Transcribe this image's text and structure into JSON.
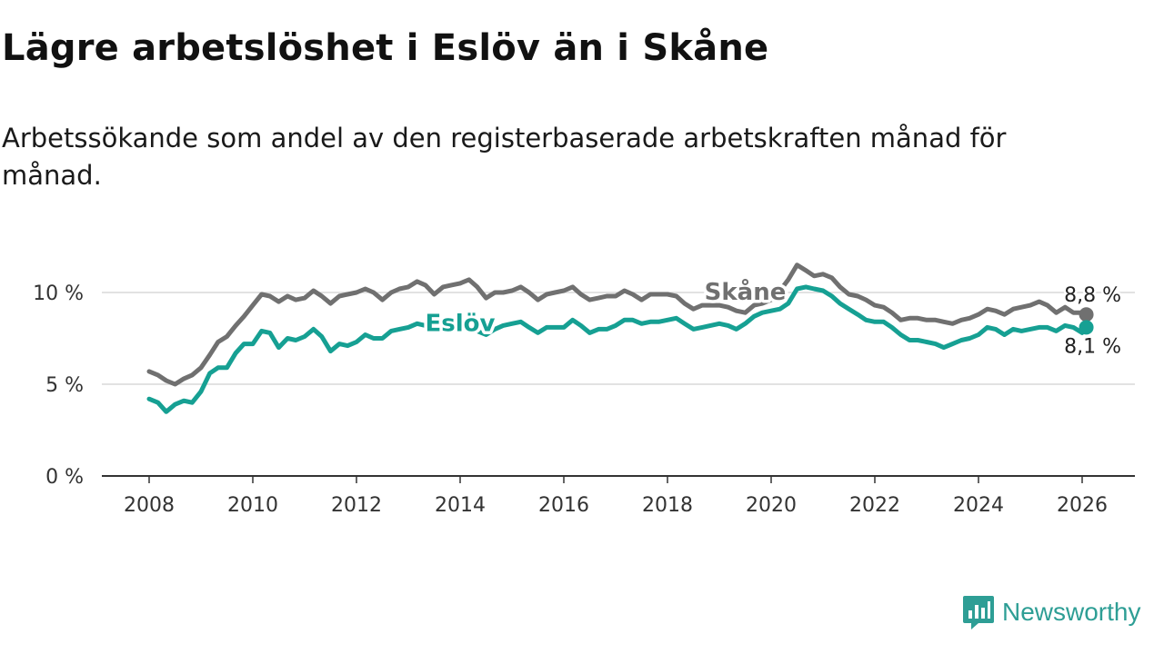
{
  "title": "Lägre arbetslöshet i Eslöv än i Skåne",
  "subtitle": "Arbetssökande som andel av den registerbaserade arbetskraften månad för månad.",
  "brand": {
    "name": "Newsworthy",
    "color": "#2e9e95",
    "icon": "newsworthy-logo-icon"
  },
  "chart_data": {
    "type": "line",
    "title": "Lägre arbetslöshet i Eslöv än i Skåne",
    "xlabel": "",
    "ylabel": "",
    "xlim": [
      2007.5,
      2027.0
    ],
    "ylim": [
      0,
      10
    ],
    "x_ticks": [
      2008,
      2010,
      2012,
      2014,
      2016,
      2018,
      2020,
      2022,
      2024,
      2026
    ],
    "y_ticks": [
      0,
      5,
      10
    ],
    "y_tick_labels": [
      "0 %",
      "5 %",
      "10 %"
    ],
    "grid": "horizontal",
    "series": [
      {
        "name": "Skåne",
        "color": "#707070",
        "end_label": "8,8 %",
        "points": [
          [
            2008.0,
            5.7
          ],
          [
            2008.17,
            5.5
          ],
          [
            2008.33,
            5.2
          ],
          [
            2008.5,
            5.0
          ],
          [
            2008.67,
            5.3
          ],
          [
            2008.83,
            5.5
          ],
          [
            2009.0,
            5.9
          ],
          [
            2009.17,
            6.6
          ],
          [
            2009.33,
            7.3
          ],
          [
            2009.5,
            7.6
          ],
          [
            2009.67,
            8.2
          ],
          [
            2009.83,
            8.7
          ],
          [
            2010.0,
            9.3
          ],
          [
            2010.17,
            9.9
          ],
          [
            2010.33,
            9.8
          ],
          [
            2010.5,
            9.5
          ],
          [
            2010.67,
            9.8
          ],
          [
            2010.83,
            9.6
          ],
          [
            2011.0,
            9.7
          ],
          [
            2011.17,
            10.1
          ],
          [
            2011.33,
            9.8
          ],
          [
            2011.5,
            9.4
          ],
          [
            2011.67,
            9.8
          ],
          [
            2011.83,
            9.9
          ],
          [
            2012.0,
            10.0
          ],
          [
            2012.17,
            10.2
          ],
          [
            2012.33,
            10.0
          ],
          [
            2012.5,
            9.6
          ],
          [
            2012.67,
            10.0
          ],
          [
            2012.83,
            10.2
          ],
          [
            2013.0,
            10.3
          ],
          [
            2013.17,
            10.6
          ],
          [
            2013.33,
            10.4
          ],
          [
            2013.5,
            9.9
          ],
          [
            2013.67,
            10.3
          ],
          [
            2013.83,
            10.4
          ],
          [
            2014.0,
            10.5
          ],
          [
            2014.17,
            10.7
          ],
          [
            2014.33,
            10.3
          ],
          [
            2014.5,
            9.7
          ],
          [
            2014.67,
            10.0
          ],
          [
            2014.83,
            10.0
          ],
          [
            2015.0,
            10.1
          ],
          [
            2015.17,
            10.3
          ],
          [
            2015.33,
            10.0
          ],
          [
            2015.5,
            9.6
          ],
          [
            2015.67,
            9.9
          ],
          [
            2015.83,
            10.0
          ],
          [
            2016.0,
            10.1
          ],
          [
            2016.17,
            10.3
          ],
          [
            2016.33,
            9.9
          ],
          [
            2016.5,
            9.6
          ],
          [
            2016.67,
            9.7
          ],
          [
            2016.83,
            9.8
          ],
          [
            2017.0,
            9.8
          ],
          [
            2017.17,
            10.1
          ],
          [
            2017.33,
            9.9
          ],
          [
            2017.5,
            9.6
          ],
          [
            2017.67,
            9.9
          ],
          [
            2017.83,
            9.9
          ],
          [
            2018.0,
            9.9
          ],
          [
            2018.17,
            9.8
          ],
          [
            2018.33,
            9.4
          ],
          [
            2018.5,
            9.1
          ],
          [
            2018.67,
            9.3
          ],
          [
            2018.83,
            9.3
          ],
          [
            2019.0,
            9.3
          ],
          [
            2019.17,
            9.2
          ],
          [
            2019.33,
            9.0
          ],
          [
            2019.5,
            8.9
          ],
          [
            2019.67,
            9.3
          ],
          [
            2019.83,
            9.4
          ],
          [
            2020.0,
            9.6
          ],
          [
            2020.17,
            10.1
          ],
          [
            2020.33,
            10.7
          ],
          [
            2020.5,
            11.5
          ],
          [
            2020.67,
            11.2
          ],
          [
            2020.83,
            10.9
          ],
          [
            2021.0,
            11.0
          ],
          [
            2021.17,
            10.8
          ],
          [
            2021.33,
            10.3
          ],
          [
            2021.5,
            9.9
          ],
          [
            2021.67,
            9.8
          ],
          [
            2021.83,
            9.6
          ],
          [
            2022.0,
            9.3
          ],
          [
            2022.17,
            9.2
          ],
          [
            2022.33,
            8.9
          ],
          [
            2022.5,
            8.5
          ],
          [
            2022.67,
            8.6
          ],
          [
            2022.83,
            8.6
          ],
          [
            2023.0,
            8.5
          ],
          [
            2023.17,
            8.5
          ],
          [
            2023.33,
            8.4
          ],
          [
            2023.5,
            8.3
          ],
          [
            2023.67,
            8.5
          ],
          [
            2023.83,
            8.6
          ],
          [
            2024.0,
            8.8
          ],
          [
            2024.17,
            9.1
          ],
          [
            2024.33,
            9.0
          ],
          [
            2024.5,
            8.8
          ],
          [
            2024.67,
            9.1
          ],
          [
            2024.83,
            9.2
          ],
          [
            2025.0,
            9.3
          ],
          [
            2025.17,
            9.5
          ],
          [
            2025.33,
            9.3
          ],
          [
            2025.5,
            8.9
          ],
          [
            2025.67,
            9.2
          ],
          [
            2025.83,
            8.9
          ],
          [
            2026.0,
            8.9
          ],
          [
            2026.08,
            8.8
          ]
        ]
      },
      {
        "name": "Eslöv",
        "color": "#16a093",
        "end_label": "8,1 %",
        "points": [
          [
            2008.0,
            4.2
          ],
          [
            2008.17,
            4.0
          ],
          [
            2008.33,
            3.5
          ],
          [
            2008.5,
            3.9
          ],
          [
            2008.67,
            4.1
          ],
          [
            2008.83,
            4.0
          ],
          [
            2009.0,
            4.6
          ],
          [
            2009.17,
            5.6
          ],
          [
            2009.33,
            5.9
          ],
          [
            2009.5,
            5.9
          ],
          [
            2009.67,
            6.7
          ],
          [
            2009.83,
            7.2
          ],
          [
            2010.0,
            7.2
          ],
          [
            2010.17,
            7.9
          ],
          [
            2010.33,
            7.8
          ],
          [
            2010.5,
            7.0
          ],
          [
            2010.67,
            7.5
          ],
          [
            2010.83,
            7.4
          ],
          [
            2011.0,
            7.6
          ],
          [
            2011.17,
            8.0
          ],
          [
            2011.33,
            7.6
          ],
          [
            2011.5,
            6.8
          ],
          [
            2011.67,
            7.2
          ],
          [
            2011.83,
            7.1
          ],
          [
            2012.0,
            7.3
          ],
          [
            2012.17,
            7.7
          ],
          [
            2012.33,
            7.5
          ],
          [
            2012.5,
            7.5
          ],
          [
            2012.67,
            7.9
          ],
          [
            2012.83,
            8.0
          ],
          [
            2013.0,
            8.1
          ],
          [
            2013.17,
            8.3
          ],
          [
            2013.33,
            8.2
          ],
          [
            2013.5,
            8.0
          ],
          [
            2013.67,
            8.0
          ],
          [
            2013.83,
            8.0
          ],
          [
            2014.0,
            8.0
          ],
          [
            2014.17,
            8.0
          ],
          [
            2014.33,
            7.9
          ],
          [
            2014.5,
            7.7
          ],
          [
            2014.67,
            8.0
          ],
          [
            2014.83,
            8.2
          ],
          [
            2015.0,
            8.3
          ],
          [
            2015.17,
            8.4
          ],
          [
            2015.33,
            8.1
          ],
          [
            2015.5,
            7.8
          ],
          [
            2015.67,
            8.1
          ],
          [
            2015.83,
            8.1
          ],
          [
            2016.0,
            8.1
          ],
          [
            2016.17,
            8.5
          ],
          [
            2016.33,
            8.2
          ],
          [
            2016.5,
            7.8
          ],
          [
            2016.67,
            8.0
          ],
          [
            2016.83,
            8.0
          ],
          [
            2017.0,
            8.2
          ],
          [
            2017.17,
            8.5
          ],
          [
            2017.33,
            8.5
          ],
          [
            2017.5,
            8.3
          ],
          [
            2017.67,
            8.4
          ],
          [
            2017.83,
            8.4
          ],
          [
            2018.0,
            8.5
          ],
          [
            2018.17,
            8.6
          ],
          [
            2018.33,
            8.3
          ],
          [
            2018.5,
            8.0
          ],
          [
            2018.67,
            8.1
          ],
          [
            2018.83,
            8.2
          ],
          [
            2019.0,
            8.3
          ],
          [
            2019.17,
            8.2
          ],
          [
            2019.33,
            8.0
          ],
          [
            2019.5,
            8.3
          ],
          [
            2019.67,
            8.7
          ],
          [
            2019.83,
            8.9
          ],
          [
            2020.0,
            9.0
          ],
          [
            2020.17,
            9.1
          ],
          [
            2020.33,
            9.4
          ],
          [
            2020.5,
            10.2
          ],
          [
            2020.67,
            10.3
          ],
          [
            2020.83,
            10.2
          ],
          [
            2021.0,
            10.1
          ],
          [
            2021.17,
            9.8
          ],
          [
            2021.33,
            9.4
          ],
          [
            2021.5,
            9.1
          ],
          [
            2021.67,
            8.8
          ],
          [
            2021.83,
            8.5
          ],
          [
            2022.0,
            8.4
          ],
          [
            2022.17,
            8.4
          ],
          [
            2022.33,
            8.1
          ],
          [
            2022.5,
            7.7
          ],
          [
            2022.67,
            7.4
          ],
          [
            2022.83,
            7.4
          ],
          [
            2023.0,
            7.3
          ],
          [
            2023.17,
            7.2
          ],
          [
            2023.33,
            7.0
          ],
          [
            2023.5,
            7.2
          ],
          [
            2023.67,
            7.4
          ],
          [
            2023.83,
            7.5
          ],
          [
            2024.0,
            7.7
          ],
          [
            2024.17,
            8.1
          ],
          [
            2024.33,
            8.0
          ],
          [
            2024.5,
            7.7
          ],
          [
            2024.67,
            8.0
          ],
          [
            2024.83,
            7.9
          ],
          [
            2025.0,
            8.0
          ],
          [
            2025.17,
            8.1
          ],
          [
            2025.33,
            8.1
          ],
          [
            2025.5,
            7.9
          ],
          [
            2025.67,
            8.2
          ],
          [
            2025.83,
            8.1
          ],
          [
            2026.0,
            7.8
          ],
          [
            2026.08,
            8.1
          ]
        ]
      }
    ],
    "annotations": [
      {
        "text": "Skåne",
        "series": "Skåne",
        "x": 2019.5,
        "y": 9.9
      },
      {
        "text": "Eslöv",
        "series": "Eslöv",
        "x": 2014.0,
        "y": 8.2
      }
    ]
  }
}
